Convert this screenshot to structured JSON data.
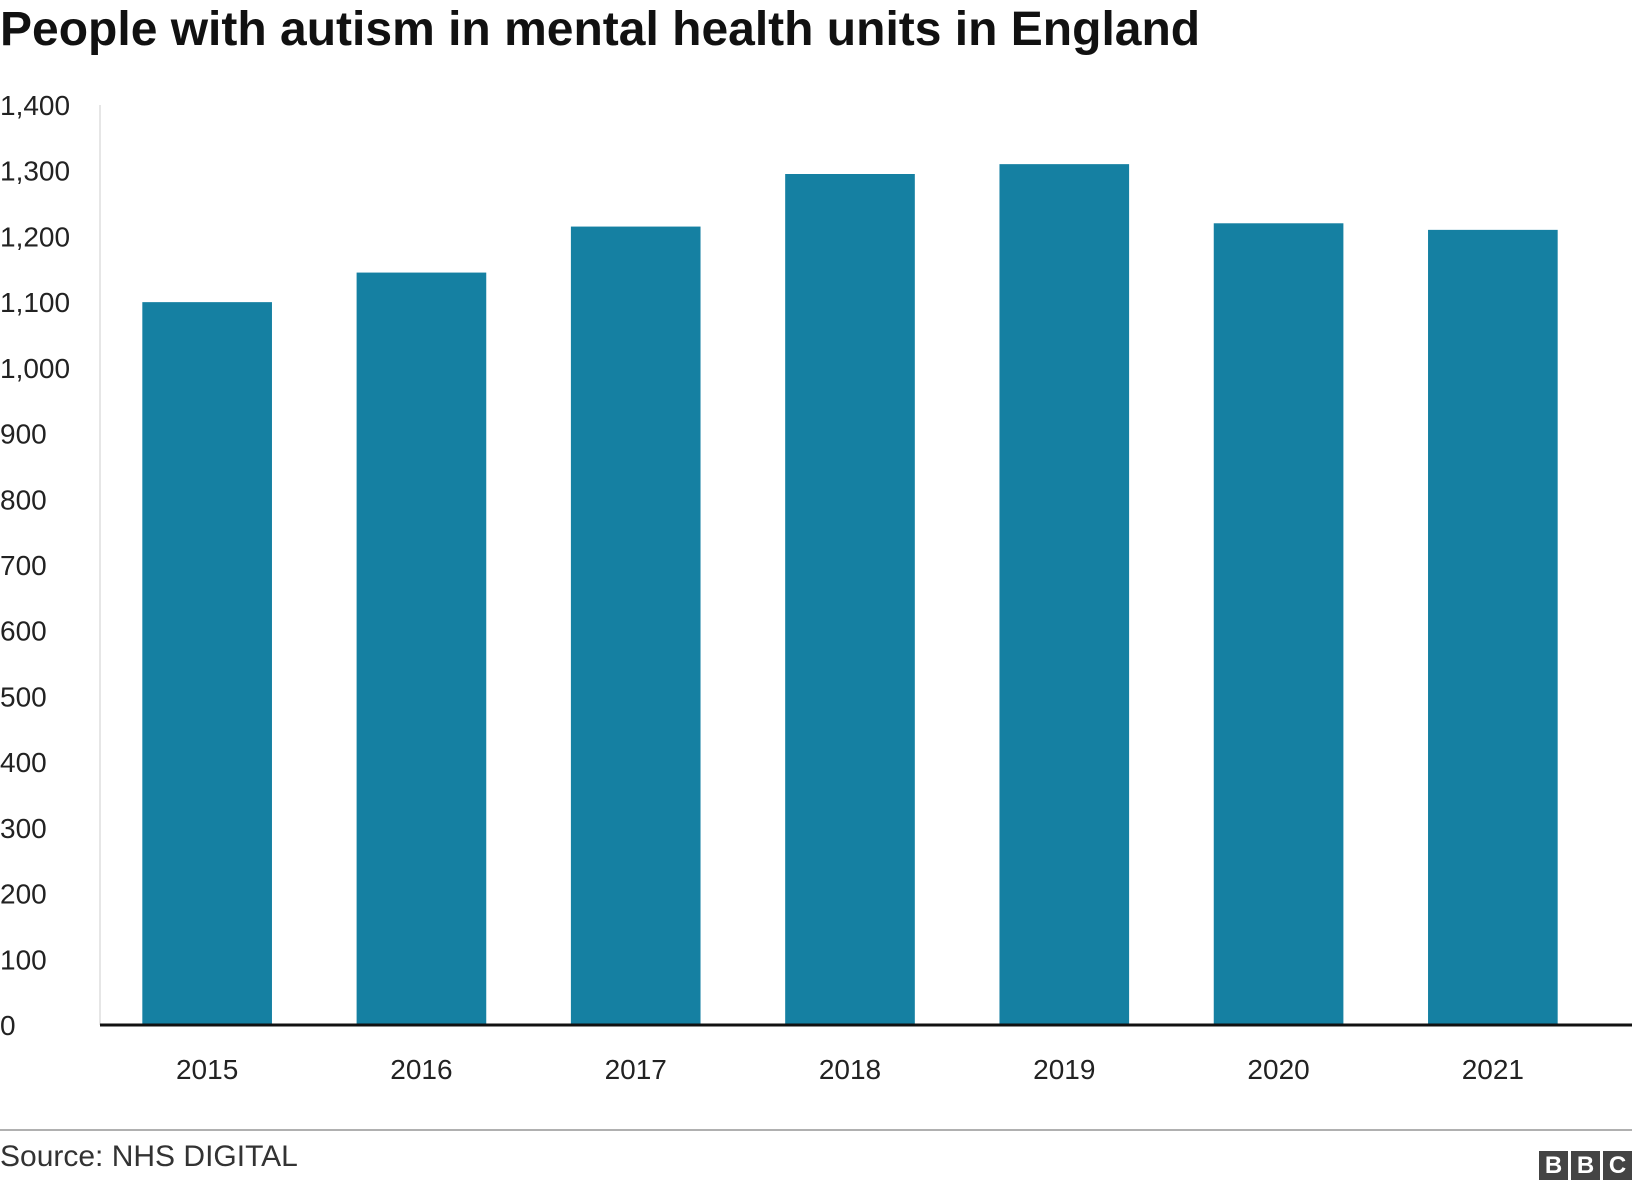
{
  "chart_data": {
    "type": "bar",
    "title": "People with autism in mental health units in England",
    "categories": [
      "2015",
      "2016",
      "2017",
      "2018",
      "2019",
      "2020",
      "2021"
    ],
    "values": [
      1100,
      1145,
      1215,
      1295,
      1310,
      1220,
      1210
    ],
    "ylim": [
      0,
      1400
    ],
    "yticks": [
      0,
      100,
      200,
      300,
      400,
      500,
      600,
      700,
      800,
      900,
      1000,
      1100,
      1200,
      1300,
      1400
    ],
    "ytick_labels": [
      "0",
      "100",
      "200",
      "300",
      "400",
      "500",
      "600",
      "700",
      "800",
      "900",
      "1,000",
      "1,100",
      "1,200",
      "1,300",
      "1,400"
    ],
    "xlabel": "",
    "ylabel": "",
    "grid": false,
    "bar_color": "#1580a2"
  },
  "footer": {
    "source": "Source: NHS DIGITAL",
    "logo_letters": [
      "B",
      "B",
      "C"
    ]
  }
}
